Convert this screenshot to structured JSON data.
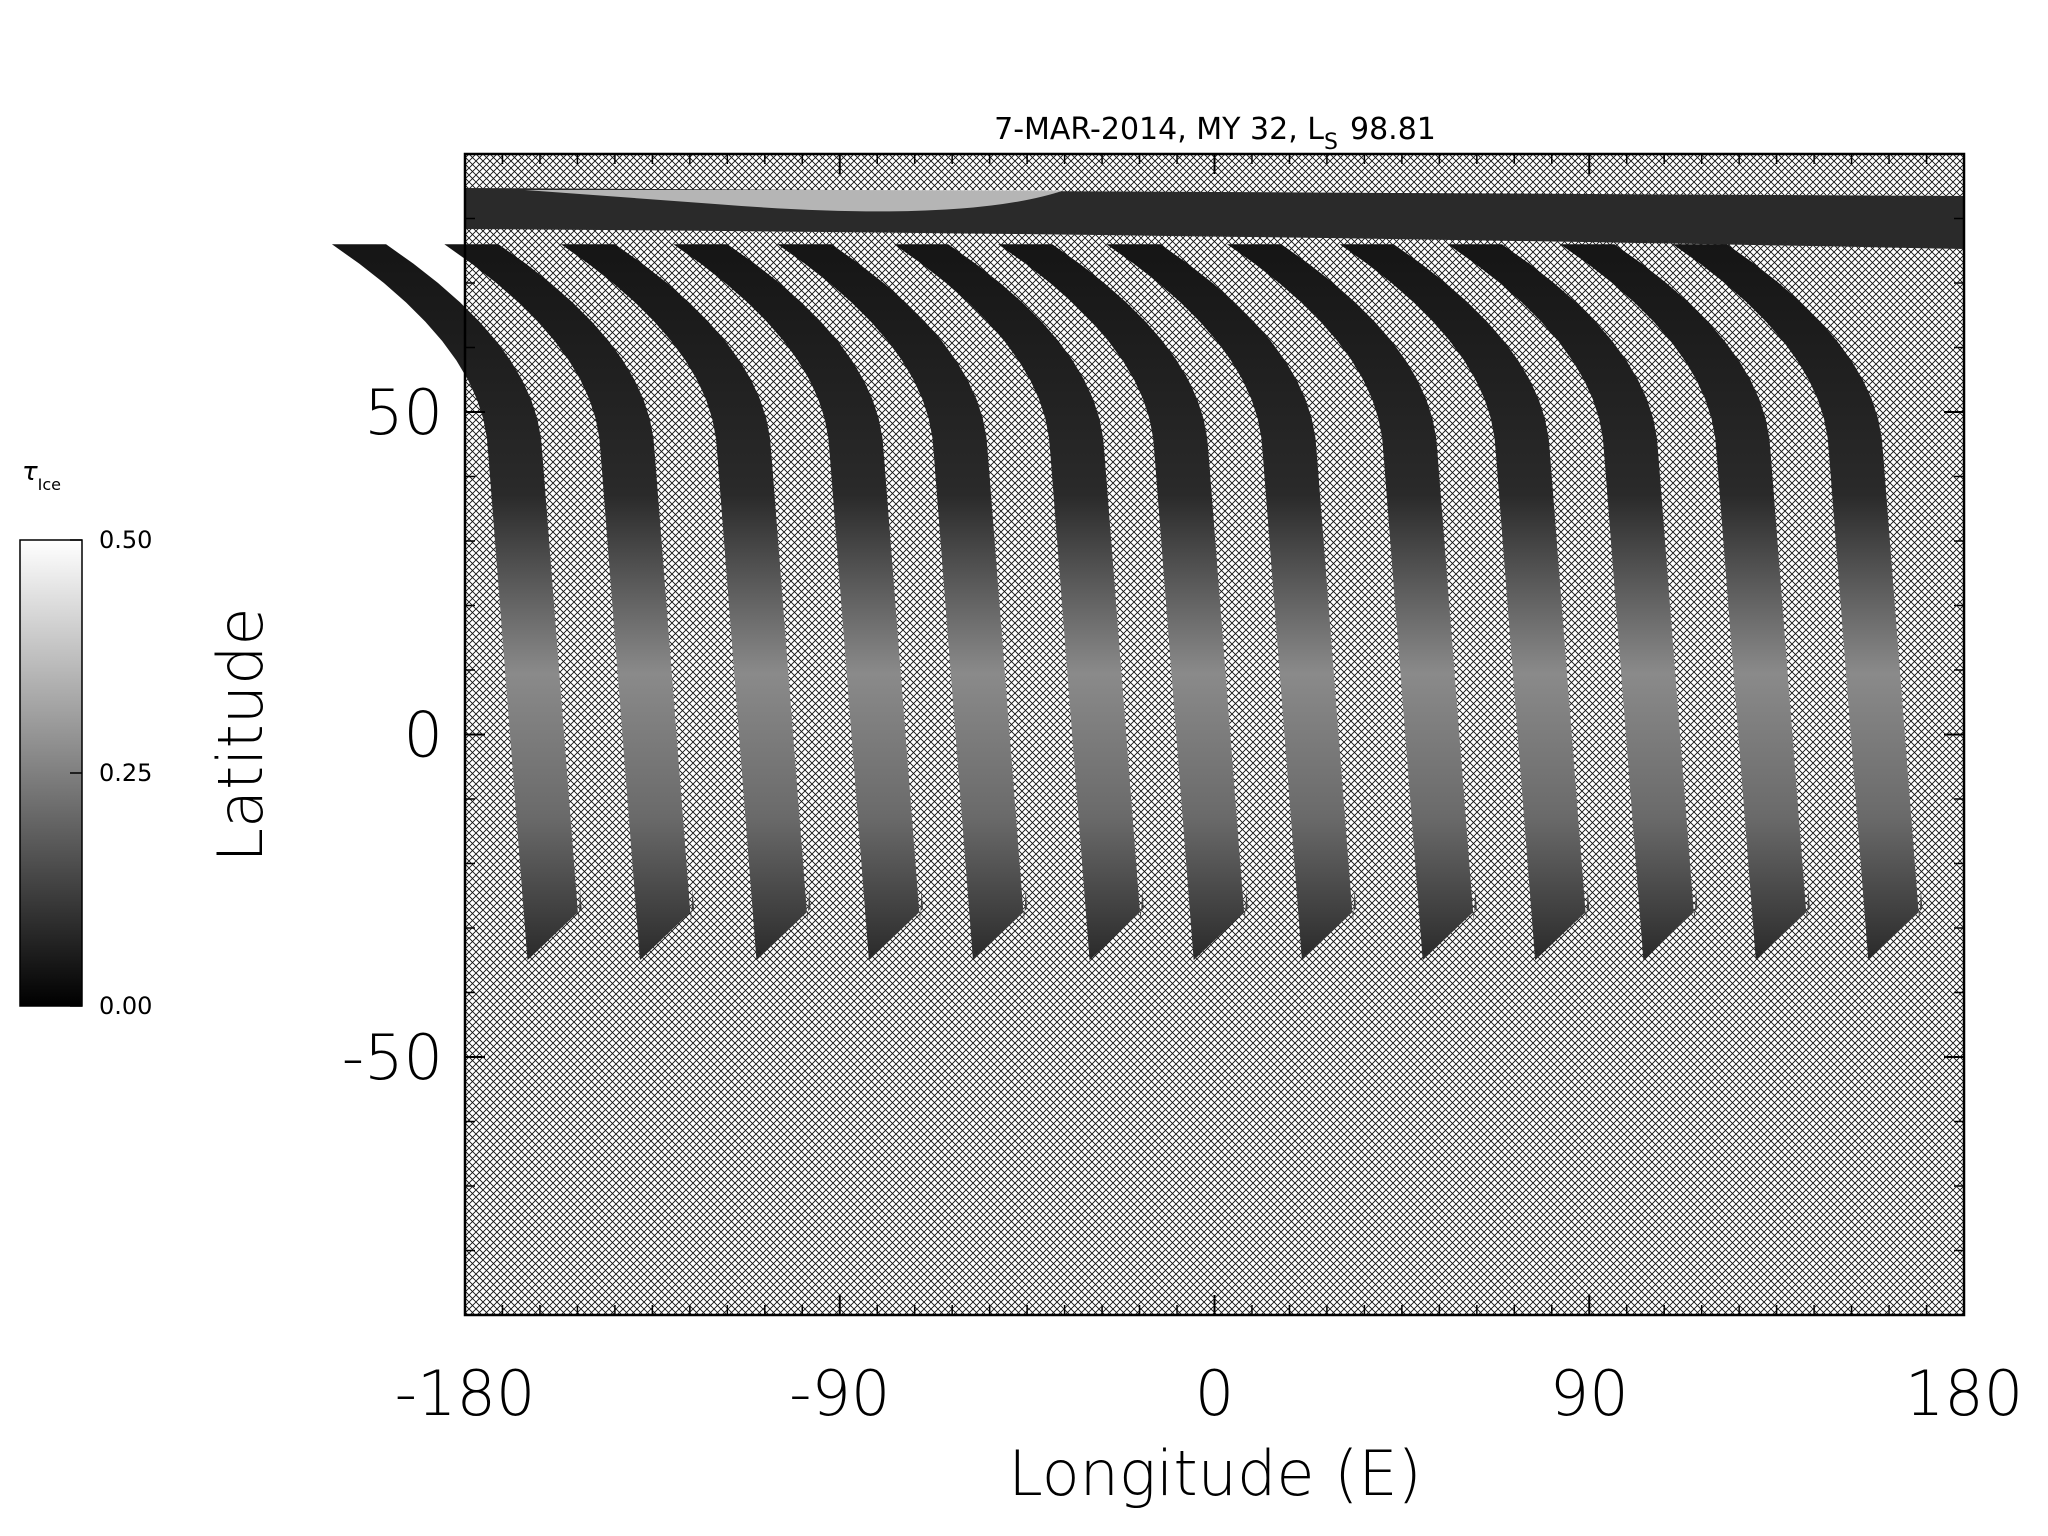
{
  "chart_data": {
    "type": "map",
    "title": {
      "text": "7-MAR-2014, MY 32,  L",
      "subscript": "S",
      "value": "98.81"
    },
    "x_label": "Longitude (E)",
    "y_label": "Latitude",
    "xlim": [
      -180,
      180
    ],
    "xticks": [
      -180,
      -90,
      0,
      90,
      180
    ],
    "ylim": [
      -90,
      90
    ],
    "yticks": [
      -50,
      0,
      50
    ],
    "colorbar": {
      "label": "τ",
      "label_subscript": "Ice",
      "lim": [
        0,
        0.5
      ],
      "ticks": [
        {
          "value": 0,
          "label": "0.00"
        },
        {
          "value": 0.25,
          "label": "0.25"
        },
        {
          "value": 0.5,
          "label": "0.50"
        }
      ]
    }
  }
}
